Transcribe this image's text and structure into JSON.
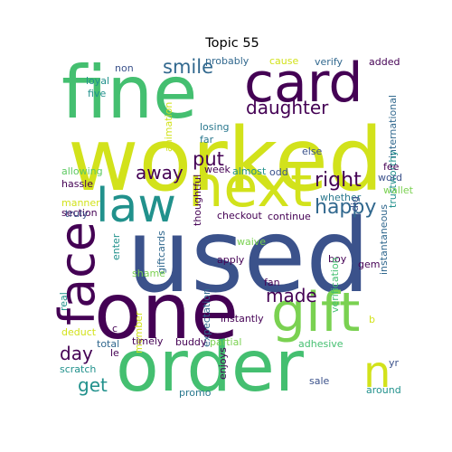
{
  "title": "Topic 55",
  "colors": {
    "c_yellow": "#d2e21b",
    "c_green": "#44bf70",
    "c_lgreen": "#7ad151",
    "c_teal": "#21918c",
    "c_blue": "#3b528b",
    "c_dblue": "#31688e",
    "c_purple": "#440154",
    "c_dpurple": "#482878",
    "c_cyan": "#2a788e",
    "c_mint": "#5ec962"
  },
  "words": [
    {
      "text": "worked",
      "color": "c_yellow"
    },
    {
      "text": "used",
      "color": "c_blue"
    },
    {
      "text": "fine",
      "color": "c_green"
    },
    {
      "text": "card",
      "color": "c_purple"
    },
    {
      "text": "order",
      "color": "c_green"
    },
    {
      "text": "one",
      "color": "c_purple"
    },
    {
      "text": "next",
      "color": "c_yellow"
    },
    {
      "text": "gift",
      "color": "c_lgreen"
    },
    {
      "text": "law",
      "color": "c_teal"
    },
    {
      "text": "face",
      "color": "c_purple"
    },
    {
      "text": "n",
      "color": "c_yellow"
    },
    {
      "text": "daughter",
      "color": "c_purple"
    },
    {
      "text": "smile",
      "color": "c_dblue"
    },
    {
      "text": "right",
      "color": "c_purple"
    },
    {
      "text": "happy",
      "color": "c_dblue"
    },
    {
      "text": "put",
      "color": "c_purple"
    },
    {
      "text": "away",
      "color": "c_purple"
    },
    {
      "text": "made",
      "color": "c_purple"
    },
    {
      "text": "day",
      "color": "c_purple"
    },
    {
      "text": "get",
      "color": "c_teal"
    },
    {
      "text": "probably",
      "color": "c_dblue"
    },
    {
      "text": "cause",
      "color": "c_yellow"
    },
    {
      "text": "verify",
      "color": "c_dblue"
    },
    {
      "text": "added",
      "color": "c_purple"
    },
    {
      "text": "non",
      "color": "c_blue"
    },
    {
      "text": "loyal",
      "color": "c_teal"
    },
    {
      "text": "five",
      "color": "c_teal"
    },
    {
      "text": "animation",
      "color": "c_yellow"
    },
    {
      "text": "losing",
      "color": "c_cyan"
    },
    {
      "text": "far",
      "color": "c_cyan"
    },
    {
      "text": "else",
      "color": "c_blue"
    },
    {
      "text": "international",
      "color": "c_dblue"
    },
    {
      "text": "trustworthy",
      "color": "c_teal"
    },
    {
      "text": "allowing",
      "color": "c_mint"
    },
    {
      "text": "hassle",
      "color": "c_purple"
    },
    {
      "text": "week",
      "color": "c_purple"
    },
    {
      "text": "almost",
      "color": "c_teal"
    },
    {
      "text": "odd",
      "color": "c_blue"
    },
    {
      "text": "fee",
      "color": "c_purple"
    },
    {
      "text": "word",
      "color": "c_blue"
    },
    {
      "text": "wallet",
      "color": "c_lgreen"
    },
    {
      "text": "whether",
      "color": "c_cyan"
    },
    {
      "text": "dig",
      "color": "c_blue"
    },
    {
      "text": "manner",
      "color": "c_yellow"
    },
    {
      "text": "section",
      "color": "c_purple"
    },
    {
      "text": "truly",
      "color": "c_blue"
    },
    {
      "text": "thoughtful",
      "color": "c_purple"
    },
    {
      "text": "checkout",
      "color": "c_purple"
    },
    {
      "text": "continue",
      "color": "c_purple"
    },
    {
      "text": "instantaneous",
      "color": "c_dblue"
    },
    {
      "text": "enter",
      "color": "c_teal"
    },
    {
      "text": "giftcards",
      "color": "c_dblue"
    },
    {
      "text": "waive",
      "color": "c_lgreen"
    },
    {
      "text": "apply",
      "color": "c_purple"
    },
    {
      "text": "boy",
      "color": "c_purple"
    },
    {
      "text": "gem",
      "color": "c_purple"
    },
    {
      "text": "real",
      "color": "c_teal"
    },
    {
      "text": "shame",
      "color": "c_lgreen"
    },
    {
      "text": "fan",
      "color": "c_purple"
    },
    {
      "text": "expectation",
      "color": "c_dblue"
    },
    {
      "text": "verification",
      "color": "c_green"
    },
    {
      "text": "instantly",
      "color": "c_purple"
    },
    {
      "text": "b",
      "color": "c_yellow"
    },
    {
      "text": "deduct",
      "color": "c_yellow"
    },
    {
      "text": "member",
      "color": "c_yellow"
    },
    {
      "text": "c",
      "color": "c_purple"
    },
    {
      "text": "total",
      "color": "c_dblue"
    },
    {
      "text": "timely",
      "color": "c_purple"
    },
    {
      "text": "buddy",
      "color": "c_purple"
    },
    {
      "text": "partial",
      "color": "c_lgreen"
    },
    {
      "text": "le",
      "color": "c_purple"
    },
    {
      "text": "adhesive",
      "color": "c_green"
    },
    {
      "text": "yr",
      "color": "c_blue"
    },
    {
      "text": "scratch",
      "color": "c_teal"
    },
    {
      "text": "enjoys",
      "color": "c_purple"
    },
    {
      "text": "promo",
      "color": "c_cyan"
    },
    {
      "text": "sale",
      "color": "c_blue"
    },
    {
      "text": "around",
      "color": "c_teal"
    }
  ]
}
